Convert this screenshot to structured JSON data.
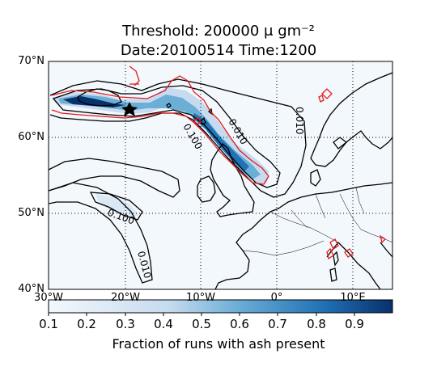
{
  "title_line1": "Threshold: 200000 μ gm⁻²",
  "title_line2": "Date:20100514 Time:1200",
  "lat_ticks": [
    "70°N",
    "60°N",
    "50°N",
    "40°N"
  ],
  "lon_ticks": [
    "30°W",
    "20°W",
    "10°W",
    "0°",
    "10°E"
  ],
  "contour_labels": [
    "0.010",
    "0.100",
    "0.010",
    "0.100",
    "0.010"
  ],
  "colorbar": {
    "ticks": [
      "0.1",
      "0.2",
      "0.3",
      "0.4",
      "0.5",
      "0.6",
      "0.7",
      "0.8",
      "0.9"
    ],
    "label": "Fraction of runs with ash present",
    "colors": {
      "low": "#f3f8fd",
      "mid": "#6baed6",
      "high": "#08306b"
    }
  },
  "map": {
    "contour_color": "#000000",
    "outline_color": "#e31a1c",
    "coast_color": "#000000"
  }
}
